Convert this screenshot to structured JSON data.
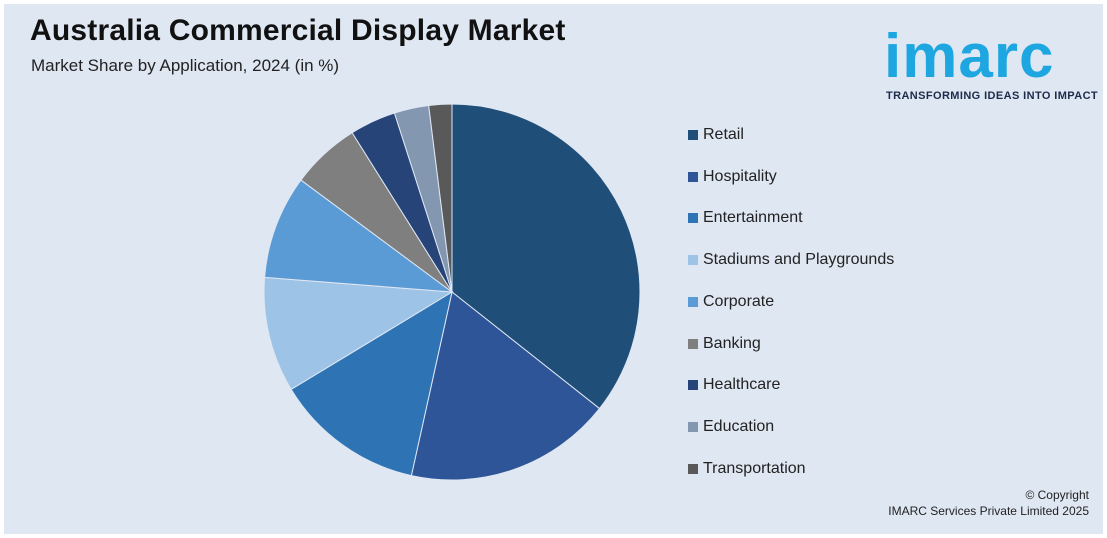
{
  "header": {
    "title": "Australia Commercial Display Market",
    "subtitle": "Market Share by Application, 2024 (in %)"
  },
  "logo": {
    "wordmark": "imarc",
    "tagline": "TRANSFORMING IDEAS INTO IMPACT",
    "color": "#1da6e0"
  },
  "chart_data": {
    "type": "pie",
    "title": "Australia Commercial Display Market",
    "subtitle": "Market Share by Application, 2024 (in %)",
    "legend_position": "right",
    "slices": [
      {
        "label": "Retail",
        "value": 36,
        "color": "#1f4e79"
      },
      {
        "label": "Hospitality",
        "value": 18,
        "color": "#2e5597"
      },
      {
        "label": "Entertainment",
        "value": 13,
        "color": "#2e74b5"
      },
      {
        "label": "Stadiums and Playgrounds",
        "value": 10,
        "color": "#9dc3e6"
      },
      {
        "label": "Corporate",
        "value": 9,
        "color": "#5b9bd5"
      },
      {
        "label": "Banking",
        "value": 6,
        "color": "#7f7f7f"
      },
      {
        "label": "Healthcare",
        "value": 4,
        "color": "#264478"
      },
      {
        "label": "Education",
        "value": 3,
        "color": "#8497b0"
      },
      {
        "label": "Transportation",
        "value": 2,
        "color": "#595959"
      }
    ]
  },
  "footer": {
    "copyright_line1": "© Copyright",
    "copyright_line2": "IMARC Services Private Limited 2025"
  }
}
